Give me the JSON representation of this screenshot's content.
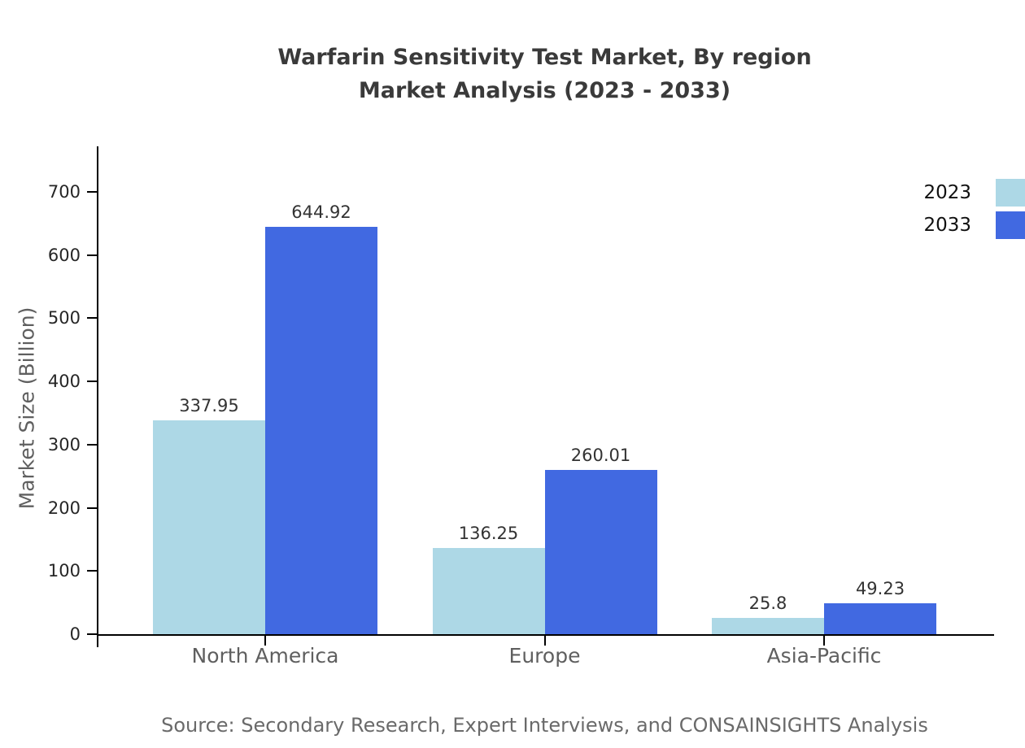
{
  "title": {
    "line1": "Warfarin Sensitivity Test Market, By region",
    "line2": "Market Analysis (2023 - 2033)"
  },
  "source": "Source: Secondary Research, Expert Interviews, and CONSAINSIGHTS Analysis",
  "chart_data": {
    "type": "bar",
    "title": "Warfarin Sensitivity Test Market, By region Market Analysis (2023 - 2033)",
    "categories": [
      "North America",
      "Europe",
      "Asia-Pacific"
    ],
    "series": [
      {
        "name": "2023",
        "color": "#add8e6",
        "values": [
          337.95,
          136.25,
          25.8
        ],
        "labels": [
          "337.95",
          "136.25",
          "25.8"
        ]
      },
      {
        "name": "2033",
        "color": "#4169e1",
        "values": [
          644.92,
          260.01,
          49.23
        ],
        "labels": [
          "644.92",
          "260.01",
          "49.23"
        ]
      }
    ],
    "xlabel": "",
    "ylabel": "Market Size (Billion)",
    "yticks": [
      0,
      100,
      200,
      300,
      400,
      500,
      600,
      700
    ],
    "ylim": [
      0,
      772
    ],
    "grid": false,
    "legend_position": "upper right",
    "bar_value_labels": true,
    "colors": {
      "bar_2023": "#add8e6",
      "bar_2033": "#4169e1",
      "axis": "#000000",
      "title_text": "#3a3a3a",
      "muted_text": "#5f5f5f"
    }
  }
}
